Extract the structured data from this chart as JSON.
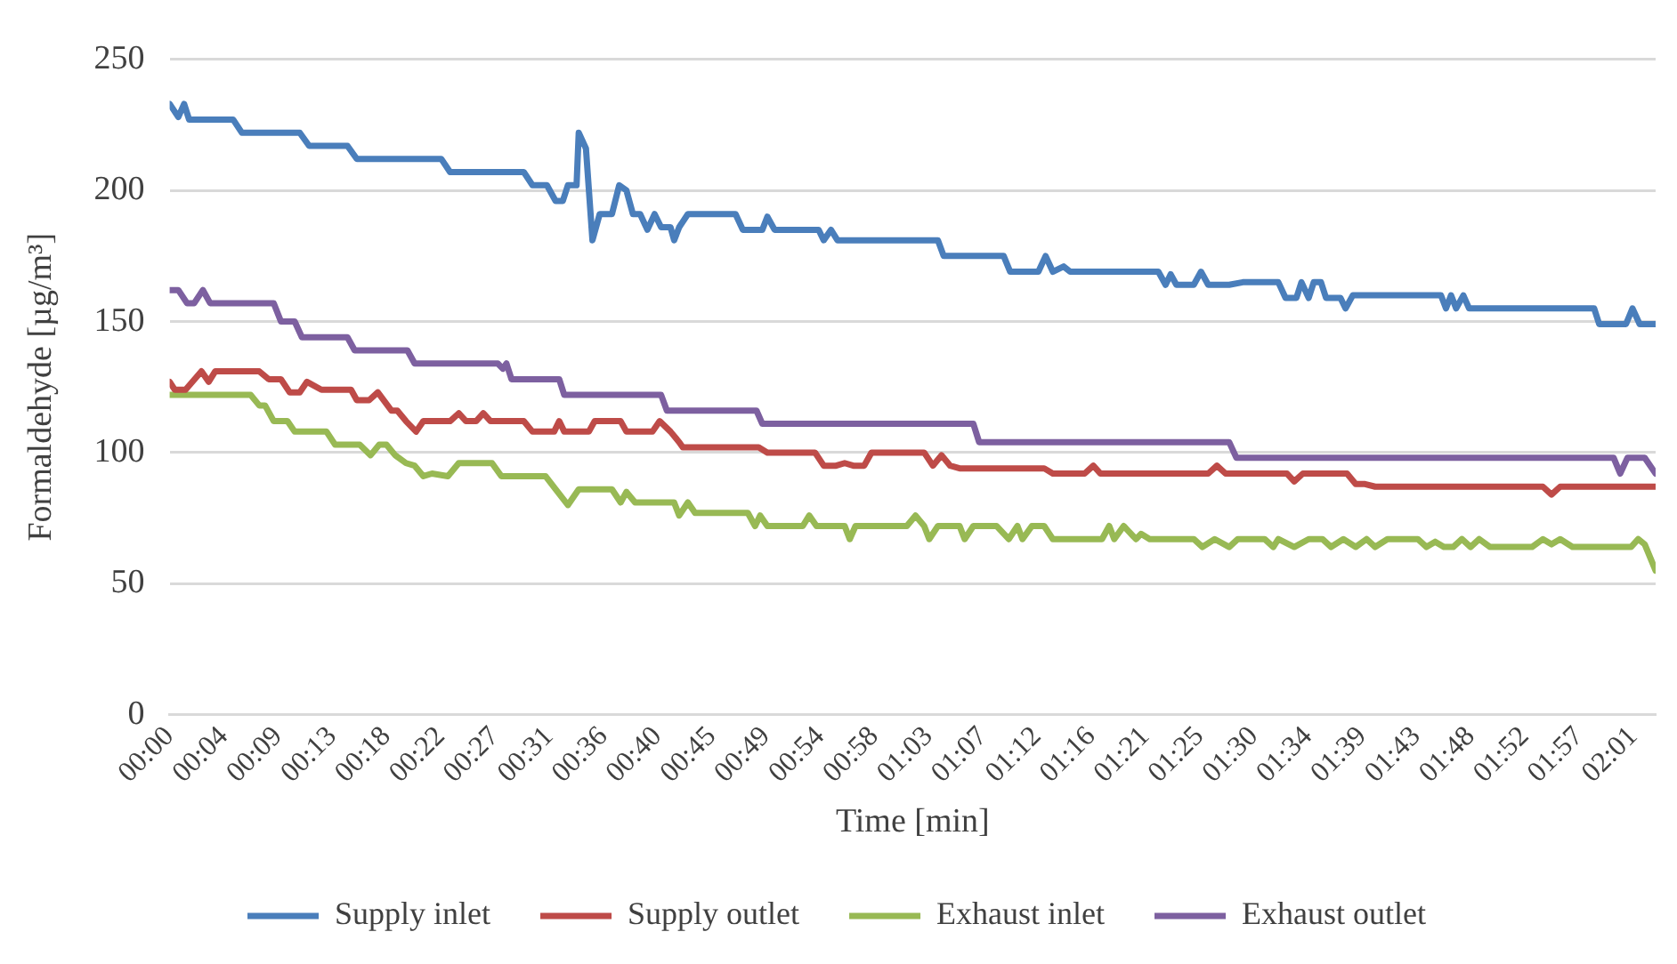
{
  "chart_data": {
    "type": "line",
    "xlabel": "Time [min]",
    "ylabel": "Formaldehyde [µg/m³]",
    "xlim": [
      0,
      2.056
    ],
    "xticks": [
      {
        "value": 0,
        "label": "00:00"
      },
      {
        "value": 0.075,
        "label": "00:04"
      },
      {
        "value": 0.15,
        "label": "00:09"
      },
      {
        "value": 0.225,
        "label": "00:13"
      },
      {
        "value": 0.3,
        "label": "00:18"
      },
      {
        "value": 0.375,
        "label": "00:22"
      },
      {
        "value": 0.45,
        "label": "00:27"
      },
      {
        "value": 0.525,
        "label": "00:31"
      },
      {
        "value": 0.6,
        "label": "00:36"
      },
      {
        "value": 0.675,
        "label": "00:40"
      },
      {
        "value": 0.75,
        "label": "00:45"
      },
      {
        "value": 0.825,
        "label": "00:49"
      },
      {
        "value": 0.9,
        "label": "00:54"
      },
      {
        "value": 0.975,
        "label": "00:58"
      },
      {
        "value": 1.05,
        "label": "01:03"
      },
      {
        "value": 1.125,
        "label": "01:07"
      },
      {
        "value": 1.2,
        "label": "01:12"
      },
      {
        "value": 1.275,
        "label": "01:16"
      },
      {
        "value": 1.35,
        "label": "01:21"
      },
      {
        "value": 1.425,
        "label": "01:25"
      },
      {
        "value": 1.5,
        "label": "01:30"
      },
      {
        "value": 1.575,
        "label": "01:34"
      },
      {
        "value": 1.65,
        "label": "01:39"
      },
      {
        "value": 1.725,
        "label": "01:43"
      },
      {
        "value": 1.8,
        "label": "01:48"
      },
      {
        "value": 1.875,
        "label": "01:52"
      },
      {
        "value": 1.95,
        "label": "01:57"
      },
      {
        "value": 2.025,
        "label": "02:01"
      }
    ],
    "ylim": [
      0,
      250
    ],
    "yticks": [
      0,
      50,
      100,
      150,
      200,
      250
    ],
    "grid": "y",
    "legend": "bottom",
    "marker": "none",
    "line_style": "solid",
    "series": [
      {
        "name": "Supply inlet",
        "color": "#4a7ebb",
        "x": [
          0,
          0.012,
          0.02,
          0.027,
          0.088,
          0.1,
          0.18,
          0.193,
          0.246,
          0.259,
          0.376,
          0.388,
          0.49,
          0.502,
          0.522,
          0.534,
          0.544,
          0.551,
          0.563,
          0.566,
          0.576,
          0.585,
          0.595,
          0.612,
          0.622,
          0.632,
          0.641,
          0.651,
          0.661,
          0.671,
          0.68,
          0.693,
          0.698,
          0.705,
          0.717,
          0.783,
          0.793,
          0.82,
          0.827,
          0.837,
          0.898,
          0.905,
          0.915,
          0.924,
          1.063,
          1.071,
          1.154,
          1.163,
          1.202,
          1.212,
          1.222,
          1.237,
          1.246,
          1.368,
          1.378,
          1.385,
          1.393,
          1.417,
          1.427,
          1.437,
          1.466,
          1.485,
          1.534,
          1.544,
          1.559,
          1.566,
          1.576,
          1.583,
          1.593,
          1.6,
          1.62,
          1.627,
          1.637,
          1.759,
          1.766,
          1.773,
          1.78,
          1.79,
          1.798,
          1.971,
          1.978,
          2.015,
          2.024,
          2.034,
          2.056
        ],
        "values": [
          233,
          228,
          233,
          227,
          227,
          222,
          222,
          217,
          217,
          212,
          212,
          207,
          207,
          202,
          202,
          196,
          196,
          202,
          202,
          222,
          216,
          181,
          191,
          191,
          202,
          200,
          191,
          191,
          185,
          191,
          186,
          186,
          181,
          186,
          191,
          191,
          185,
          185,
          190,
          185,
          185,
          181,
          185,
          181,
          181,
          175,
          175,
          169,
          169,
          175,
          169,
          171,
          169,
          169,
          164,
          168,
          164,
          164,
          169,
          164,
          164,
          165,
          165,
          159,
          159,
          165,
          159,
          165,
          165,
          159,
          159,
          155,
          160,
          160,
          155,
          160,
          155,
          160,
          155,
          155,
          149,
          149,
          155,
          149,
          149
        ]
      },
      {
        "name": "Supply outlet",
        "color": "#be4b48",
        "x": [
          0,
          0.007,
          0.022,
          0.044,
          0.054,
          0.063,
          0.124,
          0.137,
          0.154,
          0.166,
          0.18,
          0.19,
          0.21,
          0.251,
          0.259,
          0.276,
          0.288,
          0.307,
          0.315,
          0.327,
          0.341,
          0.351,
          0.388,
          0.4,
          0.41,
          0.424,
          0.434,
          0.444,
          0.49,
          0.502,
          0.532,
          0.539,
          0.546,
          0.58,
          0.588,
          0.624,
          0.632,
          0.668,
          0.678,
          0.693,
          0.705,
          0.71,
          0.815,
          0.827,
          0.893,
          0.905,
          0.922,
          0.934,
          0.946,
          0.961,
          0.971,
          1.044,
          1.056,
          1.068,
          1.08,
          1.093,
          1.21,
          1.222,
          1.266,
          1.278,
          1.288,
          1.437,
          1.449,
          1.461,
          1.546,
          1.556,
          1.568,
          1.629,
          1.641,
          1.654,
          1.668,
          1.9,
          1.912,
          1.924,
          2.056
        ],
        "values": [
          127,
          124,
          124,
          131,
          127,
          131,
          131,
          128,
          128,
          123,
          123,
          127,
          124,
          124,
          120,
          120,
          123,
          116,
          116,
          112,
          108,
          112,
          112,
          115,
          112,
          112,
          115,
          112,
          112,
          108,
          108,
          112,
          108,
          108,
          112,
          112,
          108,
          108,
          112,
          108,
          104,
          102,
          102,
          100,
          100,
          95,
          95,
          96,
          95,
          95,
          100,
          100,
          95,
          99,
          95,
          94,
          94,
          92,
          92,
          95,
          92,
          92,
          95,
          92,
          92,
          89,
          92,
          92,
          88,
          88,
          87,
          87,
          84,
          87,
          87
        ]
      },
      {
        "name": "Exhaust inlet",
        "color": "#98b954",
        "x": [
          0,
          0.112,
          0.124,
          0.132,
          0.144,
          0.163,
          0.173,
          0.217,
          0.229,
          0.263,
          0.278,
          0.29,
          0.3,
          0.312,
          0.327,
          0.339,
          0.351,
          0.363,
          0.385,
          0.4,
          0.446,
          0.459,
          0.52,
          0.534,
          0.551,
          0.566,
          0.612,
          0.624,
          0.632,
          0.644,
          0.698,
          0.705,
          0.717,
          0.727,
          0.8,
          0.81,
          0.817,
          0.827,
          0.876,
          0.885,
          0.895,
          0.934,
          0.941,
          0.949,
          1.02,
          1.032,
          1.044,
          1.051,
          1.063,
          1.093,
          1.1,
          1.112,
          1.144,
          1.161,
          1.173,
          1.18,
          1.193,
          1.21,
          1.222,
          1.29,
          1.3,
          1.307,
          1.32,
          1.337,
          1.344,
          1.356,
          1.417,
          1.429,
          1.446,
          1.466,
          1.478,
          1.515,
          1.527,
          1.534,
          1.556,
          1.576,
          1.595,
          1.607,
          1.624,
          1.641,
          1.656,
          1.668,
          1.685,
          1.727,
          1.739,
          1.751,
          1.763,
          1.776,
          1.788,
          1.8,
          1.812,
          1.827,
          1.885,
          1.9,
          1.912,
          1.924,
          1.941,
          2.022,
          2.032,
          2.041,
          2.056
        ],
        "values": [
          122,
          122,
          118,
          118,
          112,
          112,
          108,
          108,
          103,
          103,
          99,
          103,
          103,
          99,
          96,
          95,
          91,
          92,
          91,
          96,
          96,
          91,
          91,
          86,
          80,
          86,
          86,
          81,
          85,
          81,
          81,
          76,
          81,
          77,
          77,
          72,
          76,
          72,
          72,
          76,
          72,
          72,
          67,
          72,
          72,
          76,
          72,
          67,
          72,
          72,
          67,
          72,
          72,
          67,
          72,
          67,
          72,
          72,
          67,
          67,
          72,
          67,
          72,
          67,
          69,
          67,
          67,
          64,
          67,
          64,
          67,
          67,
          64,
          67,
          64,
          67,
          67,
          64,
          67,
          64,
          67,
          64,
          67,
          67,
          64,
          66,
          64,
          64,
          67,
          64,
          67,
          64,
          64,
          67,
          65,
          67,
          64,
          64,
          67,
          65,
          55
        ]
      },
      {
        "name": "Exhaust outlet",
        "color": "#7d60a0",
        "x": [
          0,
          0.012,
          0.024,
          0.034,
          0.046,
          0.056,
          0.144,
          0.154,
          0.173,
          0.183,
          0.246,
          0.256,
          0.329,
          0.339,
          0.454,
          0.461,
          0.466,
          0.473,
          0.539,
          0.546,
          0.68,
          0.688,
          0.812,
          0.82,
          1.112,
          1.12,
          1.466,
          1.476,
          1.998,
          2.007,
          2.017,
          2.041,
          2.056
        ],
        "values": [
          162,
          162,
          157,
          157,
          162,
          157,
          157,
          150,
          150,
          144,
          144,
          139,
          139,
          134,
          134,
          132,
          134,
          128,
          128,
          122,
          122,
          116,
          116,
          111,
          111,
          104,
          104,
          98,
          98,
          92,
          98,
          98,
          92
        ]
      }
    ]
  }
}
